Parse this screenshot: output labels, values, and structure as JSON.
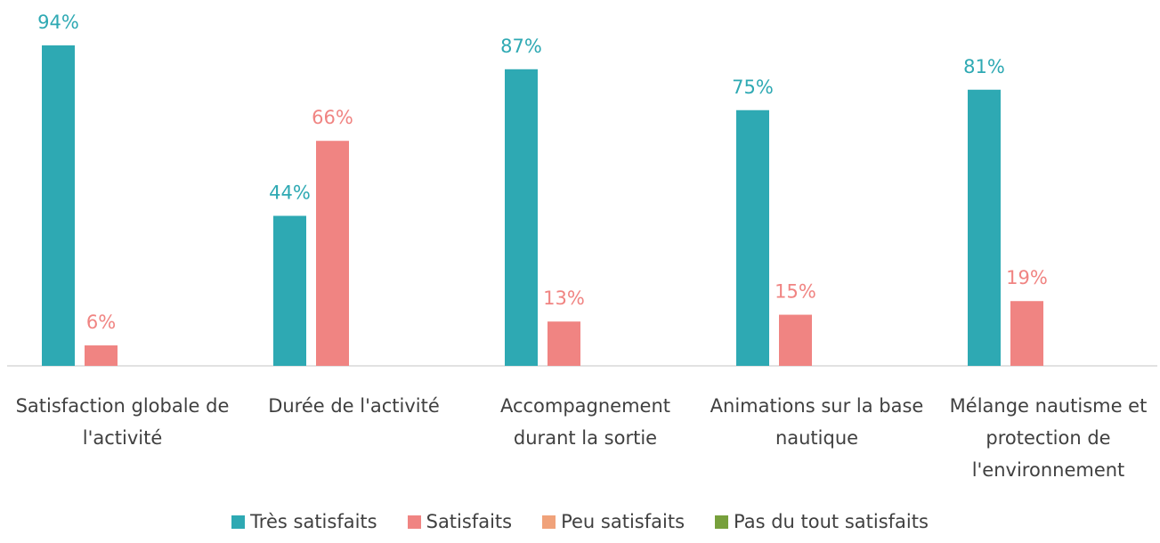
{
  "chart_data": {
    "type": "bar",
    "categories": [
      "Satisfaction globale de l'activité",
      "Durée de l'activité",
      "Accompagnement durant la sortie",
      "Animations sur la base nautique",
      "Mélange nautisme et protection de l'environnement"
    ],
    "series": [
      {
        "name": "Très satisfaits",
        "color": "#2ea9b3",
        "values": [
          94,
          44,
          87,
          75,
          81
        ],
        "value_labels": [
          "94%",
          "44%",
          "87%",
          "75%",
          "81%"
        ]
      },
      {
        "name": "Satisfaits",
        "color": "#f08482",
        "values": [
          6,
          66,
          13,
          15,
          19
        ],
        "value_labels": [
          "6%",
          "66%",
          "13%",
          "15%",
          "19%"
        ]
      },
      {
        "name": "Peu satisfaits",
        "color": "#f0a27a",
        "values": [
          null,
          null,
          null,
          null,
          null
        ]
      },
      {
        "name": "Pas du tout satisfaits",
        "color": "#77a03c",
        "values": [
          null,
          null,
          null,
          null,
          null
        ]
      }
    ],
    "ylim": [
      0,
      100
    ],
    "legend": "bottom"
  }
}
